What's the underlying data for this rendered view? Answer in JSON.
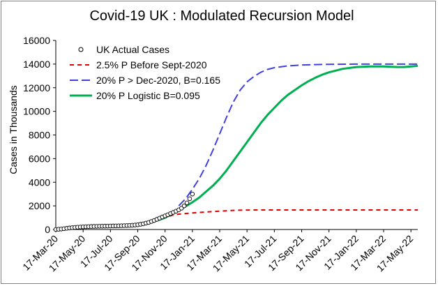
{
  "chart_data": {
    "type": "line",
    "title": "Covid-19 UK : Modulated Recursion Model",
    "xlabel": "",
    "ylabel": "Cases in Thousands",
    "ylim": [
      0,
      16000
    ],
    "yticks": [
      0,
      2000,
      4000,
      6000,
      8000,
      10000,
      12000,
      14000,
      16000
    ],
    "xticks": [
      "17-Mar-20",
      "17-May-20",
      "17-Jul-20",
      "17-Sep-20",
      "17-Nov-20",
      "17-Jan-21",
      "17-Mar-21",
      "17-May-21",
      "17-Jul-21",
      "17-Sep-21",
      "17-Nov-21",
      "17-Jan-22",
      "17-Mar-22",
      "17-May-22"
    ],
    "xlim_months": [
      0,
      26.5
    ],
    "grid": false,
    "legend": "top-left",
    "series": [
      {
        "name": "UK Actual Cases",
        "style": "markers",
        "color": "#000000",
        "x": [
          0,
          0.2,
          0.4,
          0.6,
          0.8,
          1,
          1.2,
          1.4,
          1.6,
          1.8,
          2,
          2.2,
          2.4,
          2.6,
          2.8,
          3,
          3.2,
          3.4,
          3.6,
          3.8,
          4,
          4.2,
          4.4,
          4.6,
          4.8,
          5,
          5.2,
          5.4,
          5.6,
          5.8,
          6,
          6.2,
          6.4,
          6.6,
          6.8,
          7,
          7.2,
          7.4,
          7.6,
          7.8,
          8,
          8.2,
          8.4,
          8.6,
          8.8,
          9,
          9.2,
          9.4,
          9.6,
          9.8,
          10
        ],
        "y": [
          0,
          20,
          40,
          70,
          100,
          130,
          155,
          175,
          195,
          210,
          225,
          235,
          245,
          255,
          262,
          268,
          275,
          280,
          285,
          290,
          295,
          300,
          305,
          310,
          318,
          325,
          335,
          345,
          360,
          380,
          400,
          440,
          480,
          540,
          600,
          680,
          760,
          860,
          960,
          1060,
          1150,
          1250,
          1350,
          1450,
          1550,
          1660,
          1800,
          2000,
          2250,
          2600,
          3000
        ]
      },
      {
        "name": "2.5% P Before Sept-2020",
        "style": "dashed",
        "color": "#e00000",
        "x": [
          0,
          1,
          2,
          3,
          4,
          5,
          6,
          6.5,
          7,
          7.5,
          8,
          8.5,
          9,
          10,
          11,
          12,
          13,
          14,
          15,
          16,
          18,
          20,
          22,
          24,
          26.5
        ],
        "y": [
          0,
          140,
          230,
          265,
          290,
          330,
          410,
          480,
          600,
          800,
          1000,
          1200,
          1300,
          1400,
          1480,
          1550,
          1620,
          1650,
          1655,
          1655,
          1655,
          1655,
          1655,
          1655,
          1655
        ]
      },
      {
        "name": "20% P > Dec-2020, B=0.165",
        "style": "dashed",
        "color": "#4040e0",
        "x": [
          9,
          9.5,
          10,
          10.5,
          11,
          11.5,
          12,
          12.5,
          13,
          13.5,
          14,
          14.5,
          15,
          15.5,
          16,
          17,
          18,
          19,
          20,
          22,
          24,
          26.5
        ],
        "y": [
          2000,
          2600,
          3400,
          4300,
          5400,
          6700,
          8100,
          9500,
          10800,
          11800,
          12500,
          12950,
          13300,
          13550,
          13700,
          13850,
          13920,
          13960,
          13980,
          14000,
          14000,
          14000
        ]
      },
      {
        "name": "20% P Logistic B=0.095",
        "style": "solid",
        "color": "#00b050",
        "x": [
          0,
          1,
          2,
          3,
          4,
          5,
          6,
          7,
          8,
          9,
          10,
          10.5,
          11,
          11.5,
          12,
          12.5,
          13,
          13.5,
          14,
          14.5,
          15,
          15.5,
          16,
          16.5,
          17,
          17.5,
          18,
          18.5,
          19,
          19.5,
          20,
          20.5,
          21,
          22,
          23,
          24,
          25,
          25.5,
          26,
          26.5
        ],
        "y": [
          0,
          140,
          230,
          265,
          290,
          330,
          410,
          600,
          1000,
          1600,
          2300,
          2700,
          3200,
          3700,
          4300,
          5000,
          5800,
          6600,
          7400,
          8200,
          9000,
          9700,
          10300,
          10900,
          11400,
          11800,
          12200,
          12550,
          12850,
          13100,
          13300,
          13450,
          13600,
          13750,
          13800,
          13800,
          13750,
          13750,
          13800,
          13850
        ]
      }
    ]
  }
}
